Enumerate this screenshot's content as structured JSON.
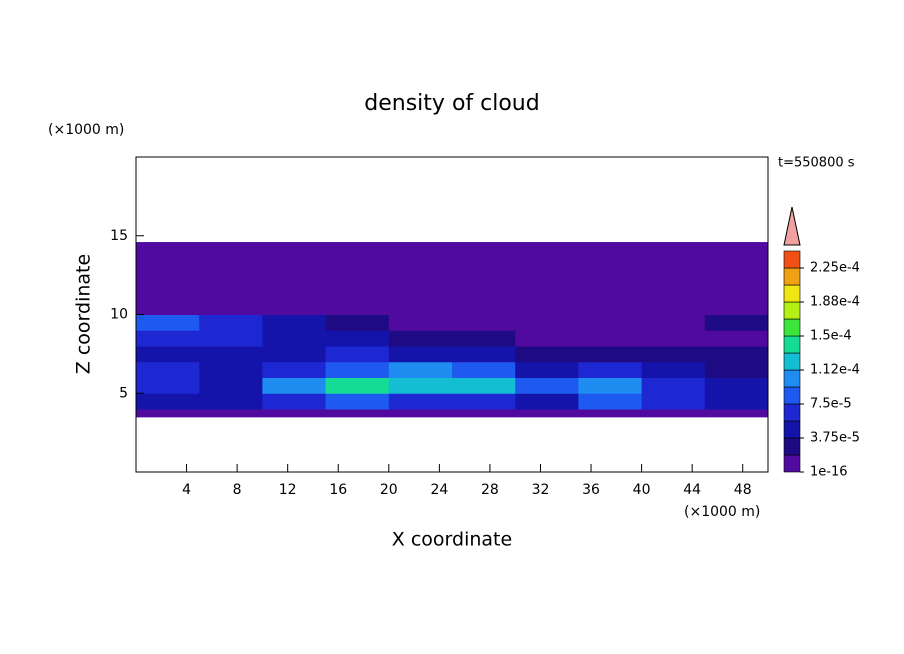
{
  "chart_data": {
    "type": "contour",
    "title": "density of cloud",
    "x_label": "X coordinate",
    "y_label": "Z coordinate",
    "x_unit": "(×1000 m)",
    "y_unit": "(×1000 m)",
    "time_label": "t=550800 s",
    "xlim": [
      0,
      50
    ],
    "ylim": [
      0,
      20
    ],
    "xticks": [
      4,
      8,
      12,
      16,
      20,
      24,
      28,
      32,
      36,
      40,
      44,
      48
    ],
    "yticks": [
      5,
      10,
      15
    ],
    "x_edges": [
      0,
      5,
      10,
      15,
      20,
      25,
      30,
      35,
      40,
      45,
      50
    ],
    "z_edges": [
      3.5,
      4,
      5,
      6,
      7,
      8,
      9,
      10,
      11,
      12,
      13,
      14,
      14.6
    ],
    "values": [
      [
        1e-05,
        1e-05,
        1e-05,
        1e-05,
        1e-05,
        1e-05,
        1e-05,
        1e-05,
        1e-05,
        1e-05
      ],
      [
        5e-05,
        4e-05,
        6e-05,
        8e-05,
        7e-05,
        6e-05,
        5e-05,
        9e-05,
        6e-05,
        4e-05
      ],
      [
        6e-05,
        5e-05,
        0.00011,
        0.00014,
        0.00013,
        0.00012,
        8e-05,
        0.0001,
        6e-05,
        5e-05
      ],
      [
        7e-05,
        5e-05,
        6e-05,
        9e-05,
        0.00011,
        9e-05,
        5e-05,
        6e-05,
        4e-05,
        3e-05
      ],
      [
        5e-05,
        4e-05,
        5e-05,
        6e-05,
        5e-05,
        4e-05,
        3e-05,
        2.5e-05,
        2.5e-05,
        3e-05
      ],
      [
        6e-05,
        7e-05,
        5e-05,
        4e-05,
        3e-05,
        2e-05,
        1e-05,
        1e-05,
        1e-05,
        1e-05
      ],
      [
        8e-05,
        7e-05,
        4e-05,
        2e-05,
        1e-05,
        1e-05,
        1e-05,
        1e-05,
        1e-05,
        3e-05
      ],
      [
        1e-05,
        1e-05,
        1e-05,
        1e-05,
        1e-05,
        1e-05,
        1e-05,
        1e-05,
        1e-05,
        1e-05
      ],
      [
        1e-05,
        1e-05,
        1e-05,
        1e-05,
        1e-05,
        1e-05,
        1e-05,
        1e-05,
        1e-05,
        1e-05
      ],
      [
        1e-05,
        1e-05,
        1e-05,
        1e-05,
        1e-05,
        1e-05,
        1e-05,
        1e-05,
        1e-05,
        1e-05
      ],
      [
        1e-05,
        1e-05,
        1e-05,
        1e-05,
        1e-05,
        1e-05,
        1e-05,
        1e-05,
        1e-05,
        1e-05
      ],
      [
        1e-05,
        1e-05,
        1e-05,
        1e-05,
        1e-05,
        1e-05,
        1e-05,
        1e-05,
        1e-05,
        1e-05
      ]
    ],
    "levels": [
      1e-16,
      1.875e-05,
      3.75e-05,
      5.625e-05,
      7.5e-05,
      9.375e-05,
      0.0001125,
      0.00013125,
      0.00015,
      0.00016875,
      0.0001875,
      0.00020625,
      0.000225,
      0.00024375
    ],
    "colors": [
      "#500aa0",
      "#1e0a82",
      "#1414aa",
      "#1e28d2",
      "#1e5af0",
      "#1e8cf0",
      "#14bed2",
      "#14dc96",
      "#3ce63c",
      "#b4f014",
      "#f0e614",
      "#f0a014",
      "#f05014"
    ],
    "colorbar_ticks": [
      {
        "value": 1e-16,
        "label": "1e-16"
      },
      {
        "value": 3.75e-05,
        "label": "3.75e-5"
      },
      {
        "value": 7.5e-05,
        "label": "7.5e-5"
      },
      {
        "value": 0.0001125,
        "label": "1.12e-4"
      },
      {
        "value": 0.00015,
        "label": "1.5e-4"
      },
      {
        "value": 0.0001875,
        "label": "1.88e-4"
      },
      {
        "value": 0.000225,
        "label": "2.25e-4"
      }
    ]
  }
}
